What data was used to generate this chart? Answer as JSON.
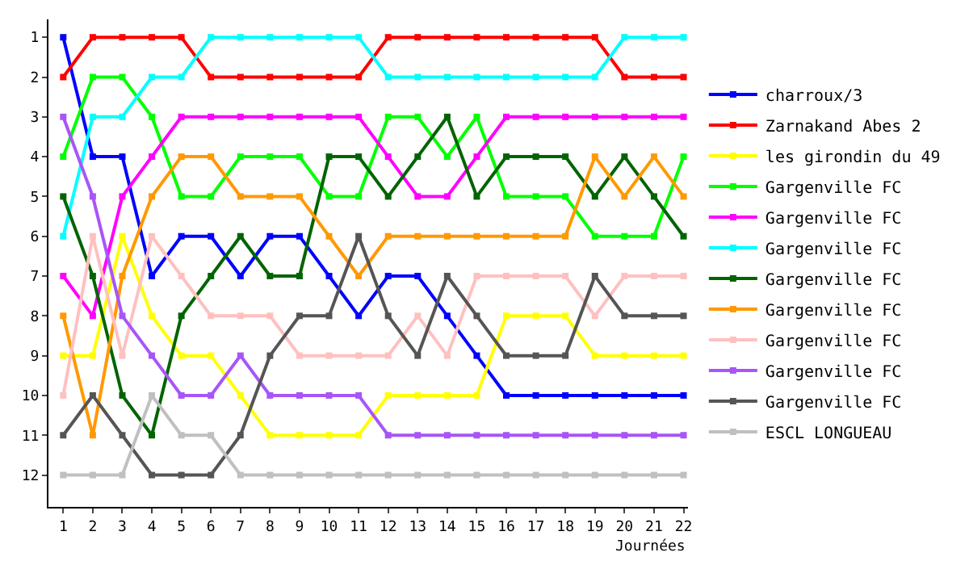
{
  "chart_data": {
    "type": "line",
    "xlabel": "Journées",
    "x": [
      1,
      2,
      3,
      4,
      5,
      6,
      7,
      8,
      9,
      10,
      11,
      12,
      13,
      14,
      15,
      16,
      17,
      18,
      19,
      20,
      21,
      22
    ],
    "xlim": [
      0.5,
      22.15
    ],
    "xticks": [
      1,
      2,
      3,
      4,
      5,
      6,
      7,
      8,
      9,
      10,
      11,
      12,
      13,
      14,
      15,
      16,
      17,
      18,
      19,
      20,
      21,
      22
    ],
    "ylim": [
      12.8,
      0.55
    ],
    "yticks": [
      1,
      2,
      3,
      4,
      5,
      6,
      7,
      8,
      9,
      10,
      11,
      12
    ],
    "legend": "right",
    "marker": "square",
    "line_style": "solid",
    "series": [
      {
        "name": "charroux/3",
        "color": "#0000ff",
        "values": [
          1,
          4,
          4,
          7,
          6,
          6,
          7,
          6,
          6,
          7,
          8,
          7,
          7,
          8,
          9,
          10,
          10,
          10,
          10,
          10,
          10,
          10
        ]
      },
      {
        "name": "Zarnakand Abes 2",
        "color": "#ff0000",
        "values": [
          2,
          1,
          1,
          1,
          1,
          2,
          2,
          2,
          2,
          2,
          2,
          1,
          1,
          1,
          1,
          1,
          1,
          1,
          1,
          2,
          2,
          2
        ]
      },
      {
        "name": "les girondin du 49",
        "color": "#ffff00",
        "values": [
          9,
          9,
          6,
          8,
          9,
          9,
          10,
          11,
          11,
          11,
          11,
          10,
          10,
          10,
          10,
          8,
          8,
          8,
          9,
          9,
          9,
          9
        ]
      },
      {
        "name": "Gargenville FC",
        "color": "#00ff00",
        "values": [
          4,
          2,
          2,
          3,
          5,
          5,
          4,
          4,
          4,
          5,
          5,
          3,
          3,
          4,
          3,
          5,
          5,
          5,
          6,
          6,
          6,
          4
        ]
      },
      {
        "name": "Gargenville FC",
        "color": "#ff00ff",
        "values": [
          7,
          8,
          5,
          4,
          3,
          3,
          3,
          3,
          3,
          3,
          3,
          4,
          5,
          5,
          4,
          3,
          3,
          3,
          3,
          3,
          3,
          3
        ]
      },
      {
        "name": "Gargenville FC",
        "color": "#00ffff",
        "values": [
          6,
          3,
          3,
          2,
          2,
          1,
          1,
          1,
          1,
          1,
          1,
          2,
          2,
          2,
          2,
          2,
          2,
          2,
          2,
          1,
          1,
          1
        ]
      },
      {
        "name": "Gargenville FC",
        "color": "#006400",
        "values": [
          5,
          7,
          10,
          11,
          8,
          7,
          6,
          7,
          7,
          4,
          4,
          5,
          4,
          3,
          5,
          4,
          4,
          4,
          5,
          4,
          5,
          6
        ]
      },
      {
        "name": "Gargenville FC",
        "color": "#ff9900",
        "values": [
          8,
          11,
          7,
          5,
          4,
          4,
          5,
          5,
          5,
          6,
          7,
          6,
          6,
          6,
          6,
          6,
          6,
          6,
          4,
          5,
          4,
          5
        ]
      },
      {
        "name": "Gargenville FC",
        "color": "#ffc0c0",
        "values": [
          10,
          6,
          9,
          6,
          7,
          8,
          8,
          8,
          9,
          9,
          9,
          9,
          8,
          9,
          7,
          7,
          7,
          7,
          8,
          7,
          7,
          7
        ]
      },
      {
        "name": "Gargenville FC",
        "color": "#a855f7",
        "values": [
          3,
          5,
          8,
          9,
          10,
          10,
          9,
          10,
          10,
          10,
          10,
          11,
          11,
          11,
          11,
          11,
          11,
          11,
          11,
          11,
          11,
          11
        ]
      },
      {
        "name": "Gargenville FC",
        "color": "#555555",
        "values": [
          11,
          10,
          11,
          12,
          12,
          12,
          11,
          9,
          8,
          8,
          6,
          8,
          9,
          7,
          8,
          9,
          9,
          9,
          7,
          8,
          8,
          8
        ]
      },
      {
        "name": "ESCL LONGUEAU",
        "color": "#c0c0c0",
        "values": [
          12,
          12,
          12,
          10,
          11,
          11,
          12,
          12,
          12,
          12,
          12,
          12,
          12,
          12,
          12,
          12,
          12,
          12,
          12,
          12,
          12,
          12
        ]
      }
    ]
  }
}
